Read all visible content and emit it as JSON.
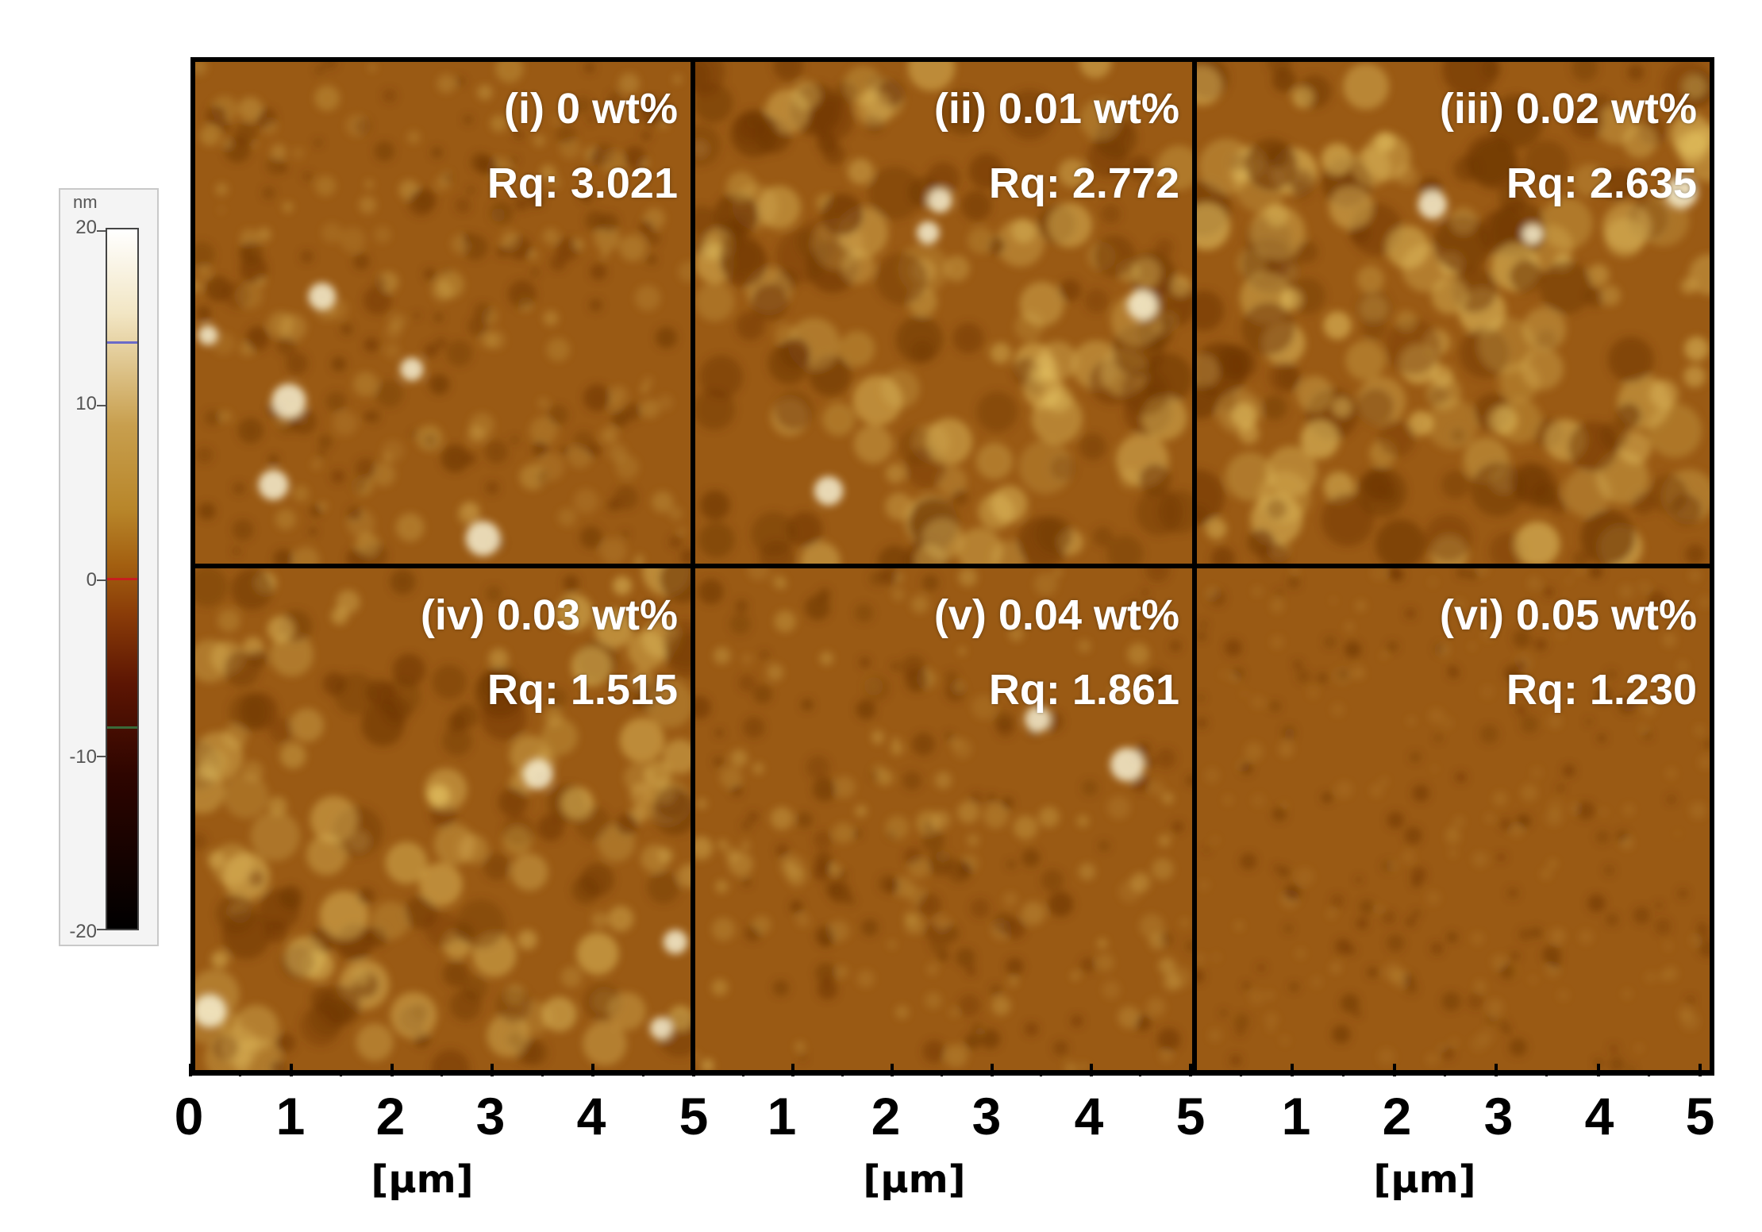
{
  "scale_bar": {
    "unit": "nm",
    "ticks": [
      "20",
      "10",
      "0",
      "-10",
      "-20"
    ],
    "range": [
      -20,
      20
    ]
  },
  "panels": [
    {
      "title": "(i) 0 wt%",
      "rq": "Rq: 3.021"
    },
    {
      "title": "(ii) 0.01 wt%",
      "rq": "Rq: 2.772"
    },
    {
      "title": "(iii) 0.02 wt%",
      "rq": "Rq: 2.635"
    },
    {
      "title": "(iv) 0.03 wt%",
      "rq": "Rq: 1.515"
    },
    {
      "title": "(v) 0.04 wt%",
      "rq": "Rq: 1.861"
    },
    {
      "title": "(vi) 0.05 wt%",
      "rq": "Rq: 1.230"
    }
  ],
  "x_axis": {
    "tick_labels": [
      "0",
      "1",
      "2",
      "3",
      "4",
      "5",
      "1",
      "2",
      "3",
      "4",
      "5",
      "1",
      "2",
      "3",
      "4",
      "5"
    ],
    "unit_labels": [
      "[μm]",
      "[μm]",
      "[μm]"
    ]
  },
  "colors": {
    "surface_base": "#9a5a14",
    "surface_dark": "#6e3606",
    "surface_light": "#e8c866",
    "grid_border": "#000000"
  }
}
